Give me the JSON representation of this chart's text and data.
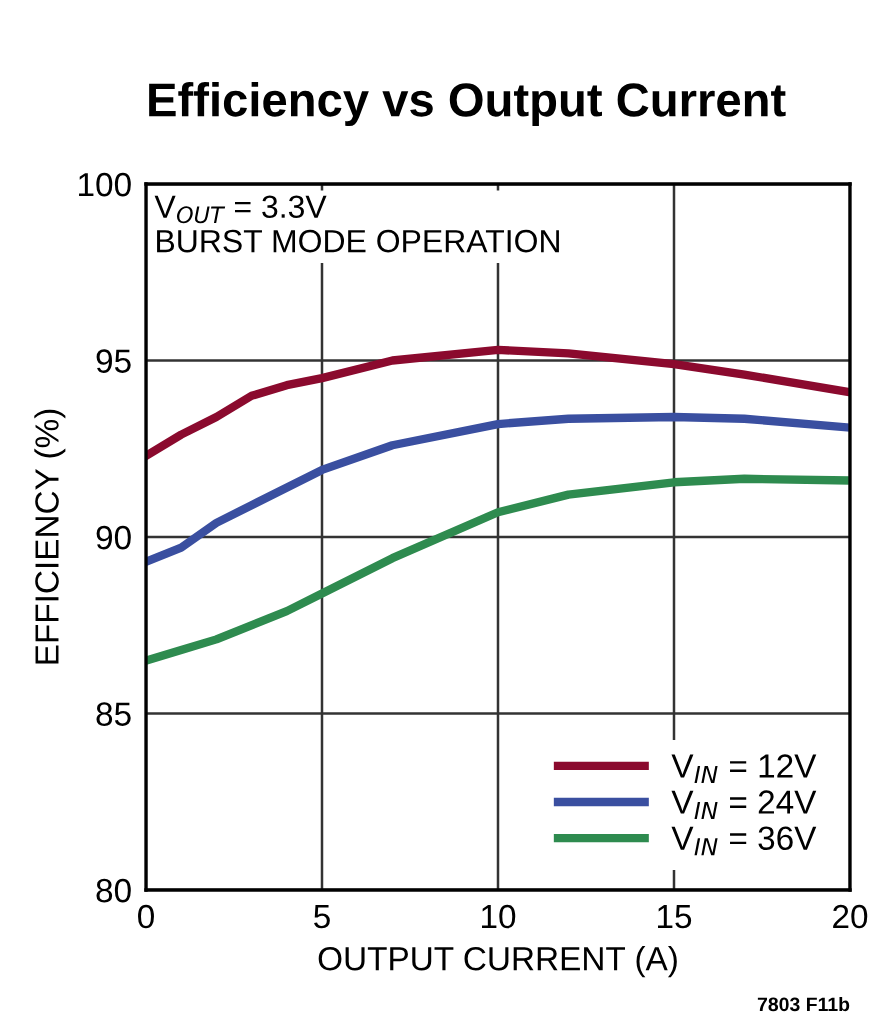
{
  "chart_data": {
    "type": "line",
    "title": "Efficiency vs Output Current",
    "xlabel": "OUTPUT CURRENT (A)",
    "ylabel": "EFFICIENCY (%)",
    "annotations": [
      "V$_{OUT}$ = 3.3V\nBURST MODE OPERATION",
      "7803 F11b"
    ],
    "series": [
      {
        "name": "V$_{IN}$ = 12V",
        "color": "#8b0a2e",
        "x": [
          0,
          1,
          2,
          3,
          4,
          5,
          7,
          10,
          12,
          15,
          17,
          20
        ],
        "values": [
          92.3,
          92.9,
          93.4,
          94.0,
          94.3,
          94.5,
          95.0,
          95.3,
          95.2,
          94.9,
          94.6,
          94.1
        ]
      },
      {
        "name": "V$_{IN}$ = 24V",
        "color": "#3a4fa0",
        "x": [
          0,
          1,
          2,
          3,
          5,
          7,
          10,
          12,
          15,
          17,
          20
        ],
        "values": [
          89.3,
          89.7,
          90.4,
          90.9,
          91.9,
          92.6,
          93.2,
          93.35,
          93.4,
          93.35,
          93.1
        ]
      },
      {
        "name": "V$_{IN}$ = 36V",
        "color": "#2e8b4f",
        "x": [
          0,
          1,
          2,
          4,
          5,
          7,
          10,
          12,
          15,
          17,
          20
        ],
        "values": [
          86.5,
          86.8,
          87.1,
          87.9,
          88.4,
          89.4,
          90.7,
          91.2,
          91.55,
          91.65,
          91.6
        ]
      }
    ],
    "xlim": [
      0,
      20
    ],
    "xticks": [
      0,
      5,
      10,
      15,
      20
    ],
    "ylim": [
      80,
      100
    ],
    "yticks": [
      80,
      85,
      90,
      95,
      100
    ],
    "grid": true,
    "legend": "bottom right",
    "line_style": "solid",
    "marker": "none"
  }
}
